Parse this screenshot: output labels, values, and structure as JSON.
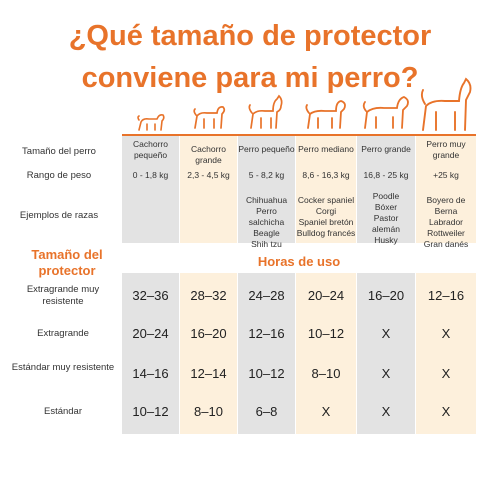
{
  "title_line1": "¿Qué tamaño de protector",
  "title_line2": "conviene para mi perro?",
  "colors": {
    "accent": "#e8732a",
    "light": "#fdf0dc",
    "gray": "#e3e3e3",
    "text": "#333333"
  },
  "labels": {
    "size": "Tamaño del perro",
    "weight": "Rango de peso",
    "breeds": "Ejemplos de razas",
    "protector_size": "Tamaño del protector",
    "hours": "Horas de uso"
  },
  "columns": [
    {
      "name": "Cachorro pequeño",
      "weight": "0 - 1,8 kg",
      "breeds": ""
    },
    {
      "name": "Cachorro grande",
      "weight": "2,3 - 4,5 kg",
      "breeds": ""
    },
    {
      "name": "Perro pequeño",
      "weight": "5 - 8,2 kg",
      "breeds": "Chihuahua\nPerro salchicha\nBeagle\nShih tzu"
    },
    {
      "name": "Perro mediano",
      "weight": "8,6 - 16,3 kg",
      "breeds": "Cocker spaniel\nCorgi\nSpaniel bretón\nBulldog francés"
    },
    {
      "name": "Perro grande",
      "weight": "16,8 - 25 kg",
      "breeds": "Poodle\nBóxer\nPastor\nalemán\nHusky"
    },
    {
      "name": "Perro muy grande",
      "weight": "+25 kg",
      "breeds": "Boyero de Berna\nLabrador\nRottweiler\nGran danés"
    }
  ],
  "rows": [
    {
      "label": "Extragrande muy resistente",
      "values": [
        "32–36",
        "28–32",
        "24–28",
        "20–24",
        "16–20",
        "12–16"
      ]
    },
    {
      "label": "Extragrande",
      "values": [
        "20–24",
        "16–20",
        "12–16",
        "10–12",
        "X",
        "X"
      ]
    },
    {
      "label": "Estándar muy resistente",
      "values": [
        "14–16",
        "12–14",
        "10–12",
        "8–10",
        "X",
        "X"
      ]
    },
    {
      "label": "Estándar",
      "values": [
        "10–12",
        "8–10",
        "6–8",
        "X",
        "X",
        "X"
      ]
    }
  ]
}
